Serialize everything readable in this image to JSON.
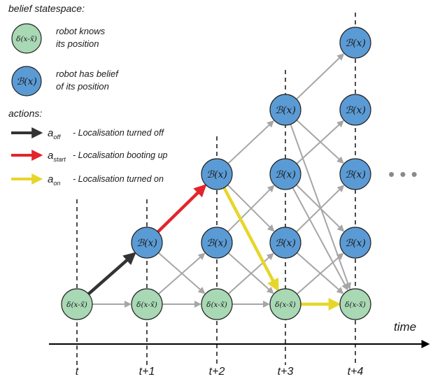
{
  "legend": {
    "heading": "belief statespace:",
    "known_symbol": "δ(x-x̃)",
    "known_line1": "robot knows",
    "known_line2": "its position",
    "belief_symbol": "ℬ(x)",
    "belief_line1": "robot has belief",
    "belief_line2": "of its position",
    "actions_heading": "actions:",
    "actions": [
      {
        "symbol": "a",
        "subscript": "off",
        "label": "- Localisation turned off",
        "color": "#333333"
      },
      {
        "symbol": "a",
        "subscript": "start",
        "label": "- Localisation booting up",
        "color": "#e3242b"
      },
      {
        "symbol": "a",
        "subscript": "on",
        "label": "- Localisation turned on",
        "color": "#e6d62a"
      }
    ]
  },
  "timeline": {
    "axis_label": "time",
    "ticks": [
      "t",
      "t+1",
      "t+2",
      "t+3",
      "t+4"
    ]
  },
  "nodes": {
    "known_label": "δ(x-x̃)",
    "belief_label": "ℬ(x)"
  },
  "colors": {
    "known_fill": "#a8d8b4",
    "belief_fill": "#5b9bd5",
    "gray_arrow": "#a6a6a6",
    "off": "#333333",
    "start": "#e3242b",
    "on": "#e6d62a"
  },
  "ellipsis": "• • •"
}
